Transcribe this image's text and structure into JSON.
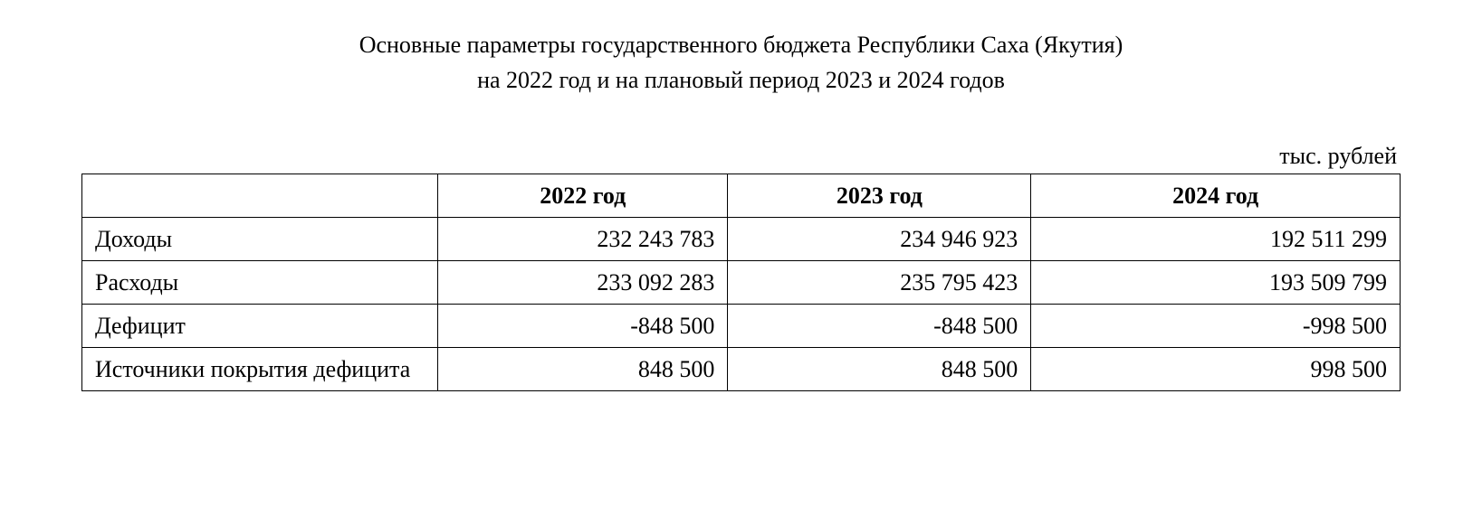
{
  "title": {
    "line1": "Основные параметры государственного бюджета Республики Саха (Якутия)",
    "line2": "на 2022 год и на плановый период 2023 и 2024 годов"
  },
  "unit_label": "тыс. рублей",
  "table": {
    "headers": {
      "col0": "",
      "col1": "2022 год",
      "col2": "2023 год",
      "col3": "2024 год"
    },
    "rows": [
      {
        "label": "Доходы",
        "y2022": "232 243 783",
        "y2023": "234 946 923",
        "y2024": "192 511 299"
      },
      {
        "label": "Расходы",
        "y2022": "233 092 283",
        "y2023": "235 795 423",
        "y2024": "193 509 799"
      },
      {
        "label": "Дефицит",
        "y2022": "-848 500",
        "y2023": "-848 500",
        "y2024": "-998 500"
      },
      {
        "label": "Источники покрытия дефицита",
        "y2022": "848 500",
        "y2023": "848 500",
        "y2024": "998 500"
      }
    ]
  }
}
